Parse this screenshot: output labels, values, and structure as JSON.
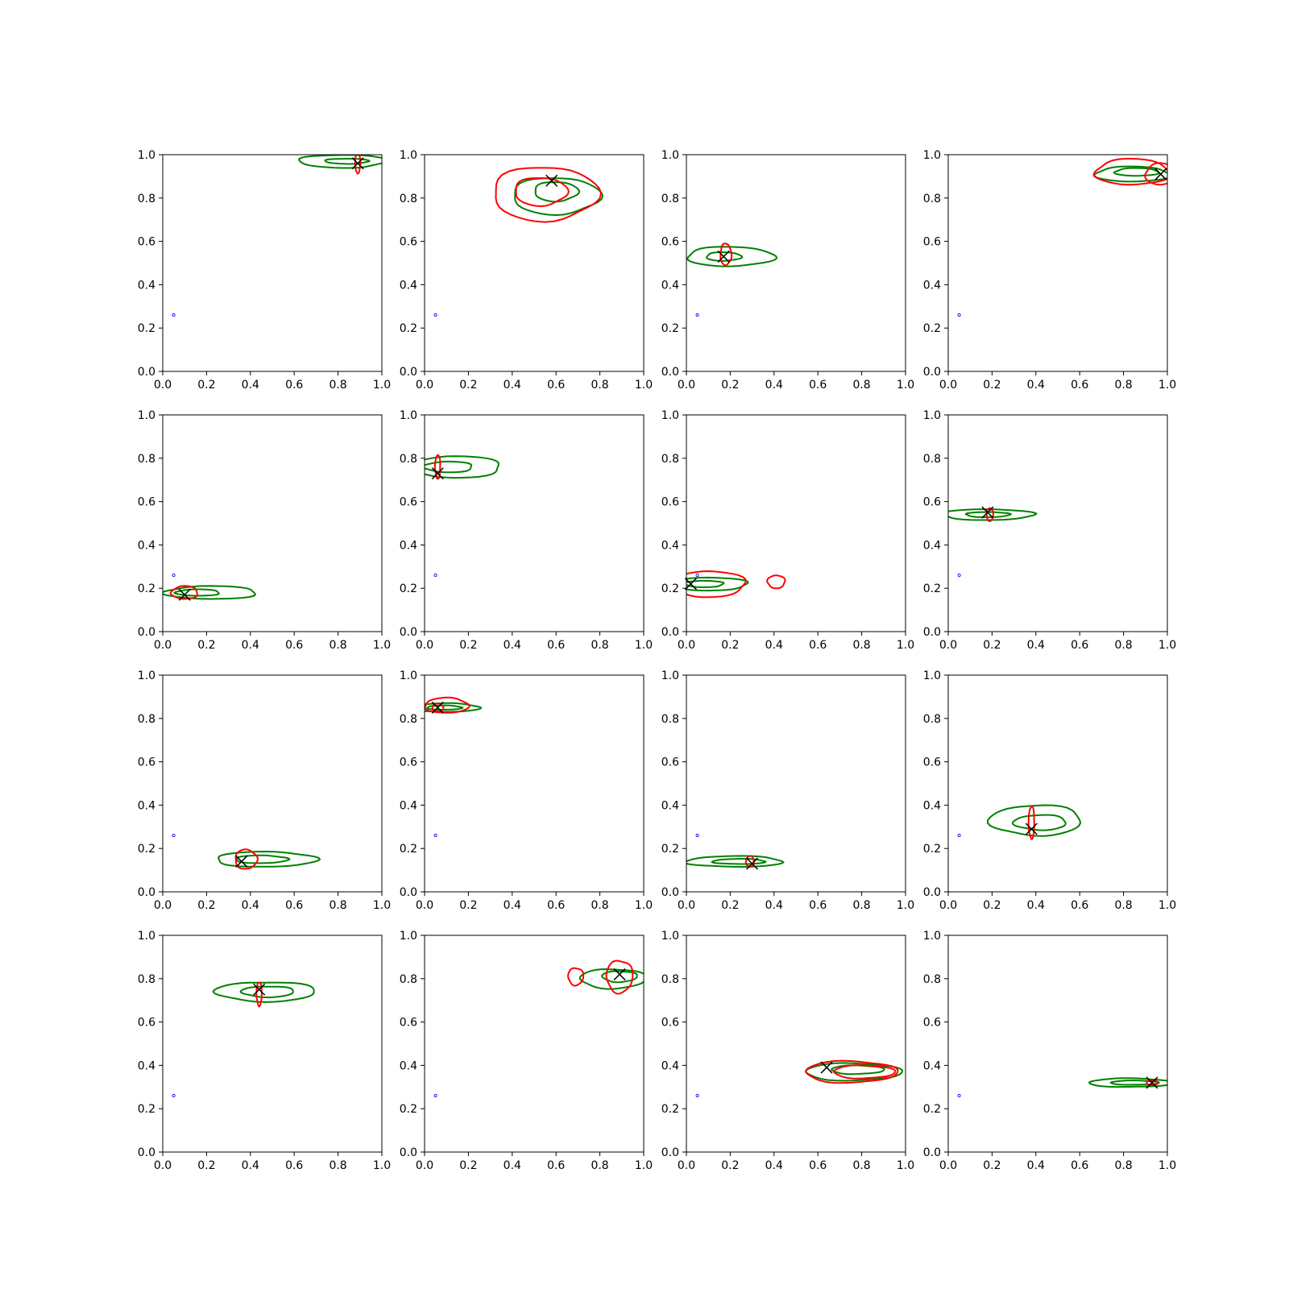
{
  "colors": {
    "green": "#008000",
    "red": "#ff0000",
    "marker": "#000000",
    "ref_point": "#0000ff"
  },
  "chart_data": {
    "type": "contour",
    "grid": "4x4",
    "xlim": [
      0,
      1
    ],
    "ylim": [
      0,
      1
    ],
    "xticks": [
      "0.0",
      "0.2",
      "0.4",
      "0.6",
      "0.8",
      "1.0"
    ],
    "yticks": [
      "0.0",
      "0.2",
      "0.4",
      "0.6",
      "0.8",
      "1.0"
    ],
    "grid_lines": false,
    "legend": "none",
    "ref_point": [
      0.05,
      0.26
    ],
    "panels": [
      {
        "marker": [
          0.89,
          0.96
        ],
        "green": [
          [
            0.82,
            0.97,
            0.2,
            0.03
          ],
          [
            0.84,
            0.97,
            0.1,
            0.012
          ]
        ],
        "red": [
          [
            0.89,
            0.96,
            0.012,
            0.045
          ]
        ]
      },
      {
        "marker": [
          0.58,
          0.88
        ],
        "green": [
          [
            0.6,
            0.81,
            0.2,
            0.085
          ],
          [
            0.6,
            0.83,
            0.1,
            0.045
          ]
        ],
        "red": [
          [
            0.55,
            0.82,
            0.24,
            0.125
          ],
          [
            0.53,
            0.83,
            0.12,
            0.065
          ]
        ]
      },
      {
        "marker": [
          0.17,
          0.53
        ],
        "green": [
          [
            0.2,
            0.53,
            0.2,
            0.045
          ],
          [
            0.17,
            0.53,
            0.08,
            0.02
          ]
        ],
        "red": [
          [
            0.18,
            0.54,
            0.025,
            0.05
          ]
        ]
      },
      {
        "marker": [
          0.97,
          0.91
        ],
        "green": [
          [
            0.84,
            0.91,
            0.17,
            0.035
          ],
          [
            0.86,
            0.92,
            0.1,
            0.018
          ]
        ],
        "red": [
          [
            0.84,
            0.92,
            0.17,
            0.06
          ],
          [
            0.97,
            0.91,
            0.07,
            0.05
          ]
        ]
      },
      {
        "marker": [
          0.1,
          0.17
        ],
        "green": [
          [
            0.22,
            0.18,
            0.21,
            0.03
          ],
          [
            0.16,
            0.18,
            0.1,
            0.015
          ]
        ],
        "red": [
          [
            0.1,
            0.18,
            0.06,
            0.03
          ]
        ]
      },
      {
        "marker": [
          0.06,
          0.73
        ],
        "green": [
          [
            0.14,
            0.76,
            0.21,
            0.05
          ],
          [
            0.11,
            0.76,
            0.11,
            0.025
          ]
        ],
        "red": [
          [
            0.06,
            0.76,
            0.012,
            0.055
          ]
        ]
      },
      {
        "marker": [
          0.02,
          0.22
        ],
        "green": [
          [
            0.1,
            0.22,
            0.18,
            0.03
          ],
          [
            0.08,
            0.22,
            0.09,
            0.015
          ]
        ],
        "red": [
          [
            0.1,
            0.22,
            0.17,
            0.06
          ],
          [
            0.41,
            0.23,
            0.04,
            0.03
          ]
        ]
      },
      {
        "marker": [
          0.18,
          0.55
        ],
        "green": [
          [
            0.18,
            0.54,
            0.21,
            0.025
          ],
          [
            0.18,
            0.54,
            0.1,
            0.012
          ]
        ],
        "red": [
          [
            0.19,
            0.54,
            0.015,
            0.03
          ]
        ]
      },
      {
        "marker": [
          0.36,
          0.14
        ],
        "green": [
          [
            0.47,
            0.15,
            0.23,
            0.035
          ],
          [
            0.45,
            0.15,
            0.12,
            0.018
          ]
        ],
        "red": [
          [
            0.38,
            0.15,
            0.05,
            0.045
          ]
        ]
      },
      {
        "marker": [
          0.06,
          0.85
        ],
        "green": [
          [
            0.1,
            0.85,
            0.15,
            0.02
          ],
          [
            0.09,
            0.85,
            0.08,
            0.01
          ]
        ],
        "red": [
          [
            0.1,
            0.86,
            0.1,
            0.035
          ],
          [
            0.06,
            0.85,
            0.025,
            0.018
          ]
        ]
      },
      {
        "marker": [
          0.3,
          0.13
        ],
        "green": [
          [
            0.22,
            0.14,
            0.22,
            0.025
          ],
          [
            0.24,
            0.14,
            0.12,
            0.012
          ]
        ],
        "red": [
          [
            0.29,
            0.14,
            0.018,
            0.025
          ]
        ]
      },
      {
        "marker": [
          0.38,
          0.29
        ],
        "green": [
          [
            0.4,
            0.33,
            0.21,
            0.07
          ],
          [
            0.42,
            0.32,
            0.12,
            0.035
          ]
        ],
        "red": [
          [
            0.38,
            0.32,
            0.013,
            0.075
          ]
        ]
      },
      {
        "marker": [
          0.44,
          0.75
        ],
        "green": [
          [
            0.47,
            0.74,
            0.23,
            0.045
          ],
          [
            0.48,
            0.74,
            0.12,
            0.025
          ]
        ],
        "red": [
          [
            0.44,
            0.73,
            0.012,
            0.055
          ]
        ]
      },
      {
        "marker": [
          0.89,
          0.82
        ],
        "green": [
          [
            0.86,
            0.8,
            0.15,
            0.045
          ],
          [
            0.89,
            0.81,
            0.08,
            0.025
          ]
        ],
        "red": [
          [
            0.89,
            0.81,
            0.06,
            0.075
          ],
          [
            0.69,
            0.81,
            0.035,
            0.04
          ]
        ]
      },
      {
        "marker": [
          0.64,
          0.39
        ],
        "green": [
          [
            0.76,
            0.37,
            0.22,
            0.04
          ],
          [
            0.78,
            0.38,
            0.12,
            0.02
          ]
        ],
        "red": [
          [
            0.75,
            0.37,
            0.21,
            0.05
          ],
          [
            0.81,
            0.37,
            0.14,
            0.03
          ]
        ]
      },
      {
        "marker": [
          0.93,
          0.32
        ],
        "green": [
          [
            0.83,
            0.32,
            0.19,
            0.02
          ],
          [
            0.85,
            0.32,
            0.11,
            0.01
          ]
        ],
        "red": [
          [
            0.93,
            0.32,
            0.025,
            0.012
          ]
        ]
      }
    ]
  }
}
